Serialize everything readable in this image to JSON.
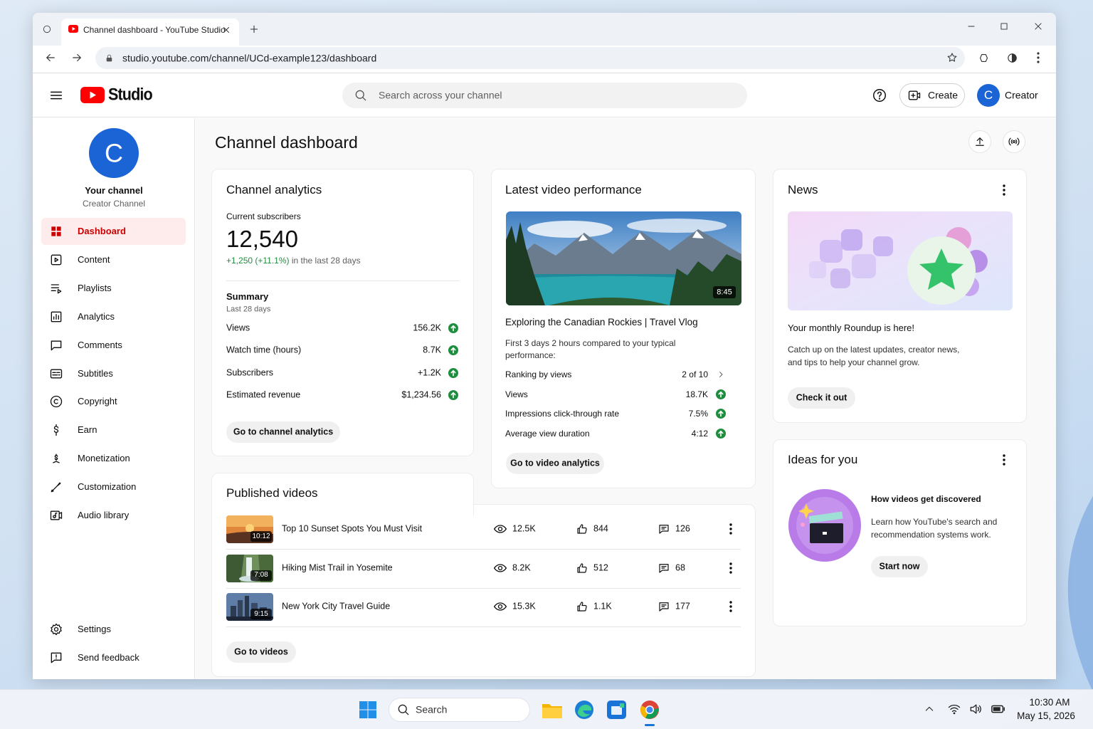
{
  "browser": {
    "tab_title": "Channel dashboard - YouTube Studio",
    "url": "studio.youtube.com/channel/UCd-example123/dashboard"
  },
  "header": {
    "logo": "Studio",
    "search_placeholder": "Search across your channel",
    "create": "Create",
    "account_initial": "C",
    "account": "Creator"
  },
  "sidebar": {
    "avatar_initial": "C",
    "channel_name": "Your channel",
    "channel_type": "Creator Channel",
    "items": [
      "Dashboard",
      "Content",
      "Playlists",
      "Analytics",
      "Comments",
      "Subtitles",
      "Copyright",
      "Earn",
      "Monetization",
      "Customization",
      "Audio library"
    ],
    "footer_items": [
      "Settings",
      "Send feedback"
    ]
  },
  "page": {
    "title": "Channel dashboard"
  },
  "analytics": {
    "title": "Channel analytics",
    "subscribers_label": "Current subscribers",
    "subscribers": "12,540",
    "change": "+1,250 (+11.1%)",
    "change_suffix": "in the last 28 days",
    "summary_title": "Summary",
    "summary_period": "Last 28 days",
    "rows": [
      {
        "label": "Views",
        "value": "156.2K"
      },
      {
        "label": "Watch time (hours)",
        "value": "8.7K"
      },
      {
        "label": "Subscribers",
        "value": "+1.2K"
      },
      {
        "label": "Estimated revenue",
        "value": "$1,234.56"
      }
    ],
    "button": "Go to channel analytics"
  },
  "latest": {
    "title": "Latest video performance",
    "duration": "8:45",
    "video_title": "Exploring the Canadian Rockies | Travel Vlog",
    "note": "First 3 days 2 hours compared to your typical performance:",
    "rows": [
      {
        "label": "Ranking by views",
        "value": "2 of 10"
      },
      {
        "label": "Views",
        "value": "18.7K"
      },
      {
        "label": "Impressions click-through rate",
        "value": "7.5%"
      },
      {
        "label": "Average view duration",
        "value": "4:12"
      }
    ],
    "button": "Go to video analytics"
  },
  "published": {
    "title": "Published videos",
    "videos": [
      {
        "duration": "10:12",
        "title": "Top 10 Sunset Spots You Must Visit",
        "views": "12.5K",
        "likes": "844",
        "comments": "126"
      },
      {
        "duration": "7:08",
        "title": "Hiking Mist Trail in Yosemite",
        "views": "8.2K",
        "likes": "512",
        "comments": "68"
      },
      {
        "duration": "9:15",
        "title": "New York City Travel Guide",
        "views": "15.3K",
        "likes": "1.1K",
        "comments": "177"
      }
    ],
    "button": "Go to videos"
  },
  "news": {
    "title": "News",
    "heading": "Your monthly Roundup is here!",
    "body": "Catch up on the latest updates, creator news, and tips to help your channel grow.",
    "button": "Check it out"
  },
  "ideas": {
    "title": "Ideas for you",
    "heading": "How videos get discovered",
    "body": "Learn how YouTube's search and recommendation systems work.",
    "button": "Start now"
  },
  "taskbar": {
    "search": "Search",
    "time": "10:30 AM",
    "date": "May 15, 2026"
  }
}
